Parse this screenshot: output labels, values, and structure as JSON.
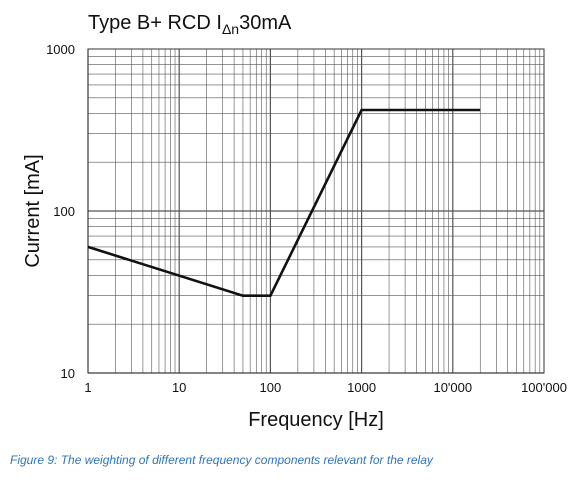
{
  "chart_data": {
    "type": "line",
    "title": {
      "main": "Type B+ RCD I",
      "subscript": "Δn",
      "suffix": "30mA"
    },
    "xlabel": "Frequency [Hz]",
    "ylabel": "Current [mA]",
    "x_scale": "log",
    "y_scale": "log",
    "xlim": [
      1,
      100000
    ],
    "ylim": [
      10,
      1000
    ],
    "grid": true,
    "x_ticks": [
      {
        "value": 1,
        "label": "1"
      },
      {
        "value": 10,
        "label": "10"
      },
      {
        "value": 100,
        "label": "100"
      },
      {
        "value": 1000,
        "label": "1000"
      },
      {
        "value": 10000,
        "label": "10'000"
      },
      {
        "value": 100000,
        "label": "100'000"
      }
    ],
    "y_ticks": [
      {
        "value": 10,
        "label": "10"
      },
      {
        "value": 100,
        "label": "100"
      },
      {
        "value": 1000,
        "label": "1000"
      }
    ],
    "series": [
      {
        "x": [
          1,
          50,
          100,
          1000,
          20000
        ],
        "y": [
          60,
          30,
          30,
          420,
          420
        ],
        "color": "#111111"
      }
    ]
  },
  "caption": "Figure 9: The weighting of different frequency components relevant for the relay",
  "colors": {
    "grid": "#555555",
    "curve": "#111111",
    "caption": "#2e75b6"
  }
}
